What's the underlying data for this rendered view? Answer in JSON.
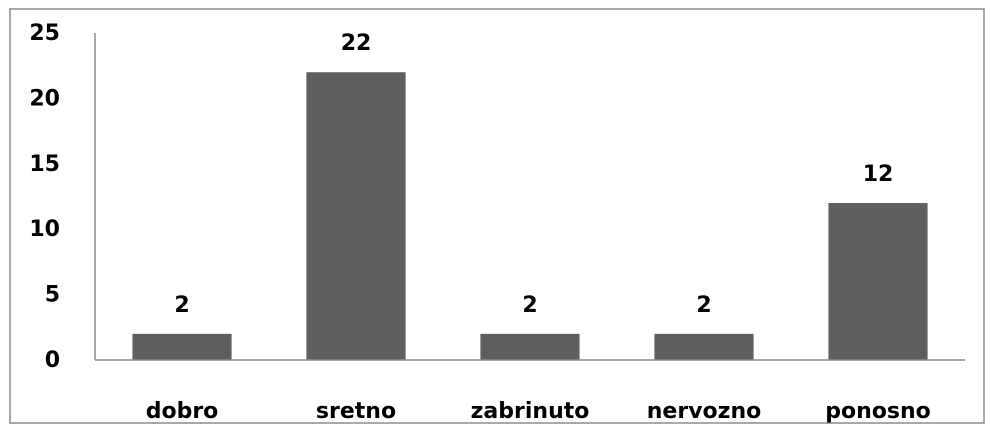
{
  "chart_data": {
    "type": "bar",
    "categories": [
      "dobro",
      "sretno",
      "zabrinuto",
      "nervozno",
      "ponosno"
    ],
    "values": [
      2,
      22,
      2,
      2,
      12
    ],
    "ylim": [
      0,
      25
    ],
    "yticks": [
      0,
      5,
      10,
      15,
      20,
      25
    ],
    "grid": false,
    "bar_color": "#5f5f5f",
    "data_labels": true
  }
}
